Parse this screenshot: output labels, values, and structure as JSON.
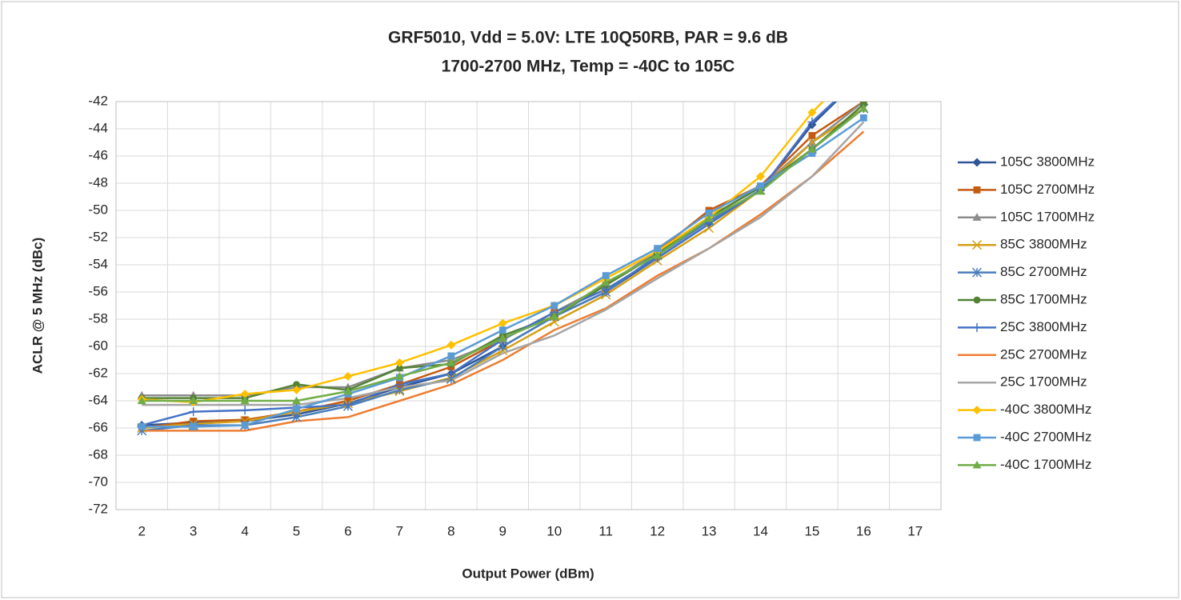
{
  "chart_data": {
    "type": "line",
    "title": [
      "GRF5010, Vdd = 5.0V: LTE 10Q50RB, PAR = 9.6 dB",
      "1700-2700 MHz, Temp = -40C to 105C"
    ],
    "x_label": "Output Power (dBm)",
    "y_label": "ACLR @ 5 MHz (dBc)",
    "categories": [
      2,
      3,
      4,
      5,
      6,
      7,
      8,
      9,
      10,
      11,
      12,
      13,
      14,
      15,
      16,
      17
    ],
    "ylim": [
      -72,
      -42
    ],
    "yticks": [
      -72,
      -70,
      -68,
      -66,
      -64,
      -62,
      -60,
      -58,
      -56,
      -54,
      -52,
      -50,
      -48,
      -46,
      -44,
      -42
    ],
    "grid": true,
    "legend": "right",
    "series": [
      {
        "name": "105C  3800MHz",
        "color": "#2f5597",
        "marker": "diamond",
        "values": [
          -65.8,
          -65.6,
          -65.5,
          -65,
          -64.2,
          -63,
          -62,
          -60,
          -57.8,
          -56,
          -53.5,
          -51,
          -48.5,
          -43.7,
          -40,
          null
        ]
      },
      {
        "name": "105C  2700MHz",
        "color": "#c55a11",
        "marker": "square",
        "values": [
          -66,
          -65.5,
          -65.4,
          -64.8,
          -64,
          -62.8,
          -61.5,
          -59.5,
          -57.5,
          -55.5,
          -53,
          -50,
          -48.2,
          -44.5,
          -42,
          null
        ]
      },
      {
        "name": "105C  1700MHz",
        "color": "#8c8c8c",
        "marker": "triangle",
        "values": [
          -63.6,
          -63.6,
          -63.6,
          -63,
          -63,
          -61.6,
          -61,
          -59.5,
          -57.5,
          -55.5,
          -53,
          -50.5,
          -48.3,
          -45,
          -42,
          null
        ]
      },
      {
        "name": "85C  3800MHz",
        "color": "#d4a017",
        "marker": "x",
        "values": [
          -66,
          -65.7,
          -65.5,
          -64.8,
          -64.2,
          -63.3,
          -62.3,
          -60.3,
          -58.2,
          -56.2,
          -53.7,
          -51.3,
          -48.5,
          -45,
          -42.5,
          null
        ]
      },
      {
        "name": "85C  2700MHz",
        "color": "#4a7ebb",
        "marker": "star",
        "values": [
          -66.2,
          -65.8,
          -65.8,
          -65.2,
          -64.4,
          -63.2,
          -62.4,
          -60,
          -57.8,
          -56,
          -53.3,
          -50.8,
          -48.5,
          -45.5,
          -42.5,
          null
        ]
      },
      {
        "name": "85C  1700MHz",
        "color": "#548235",
        "marker": "circle",
        "values": [
          -63.8,
          -63.8,
          -63.8,
          -62.8,
          -63.2,
          -61.6,
          -61.3,
          -59.2,
          -57.8,
          -55.5,
          -53.2,
          -50.5,
          -48.3,
          -45.5,
          -42.2,
          null
        ]
      },
      {
        "name": "25C  3800MHz",
        "color": "#4472c4",
        "marker": "plus",
        "values": [
          -65.8,
          -64.8,
          -64.7,
          -64.5,
          -64.3,
          -62.8,
          -62,
          -59.5,
          -57.5,
          -55.8,
          -53.5,
          -51,
          -48.5,
          -43.5,
          -40,
          null
        ]
      },
      {
        "name": "25C  2700MHz",
        "color": "#ed7d31",
        "marker": "none",
        "values": [
          -66.2,
          -66.2,
          -66.2,
          -65.5,
          -65.2,
          -64,
          -62.8,
          -61,
          -58.8,
          -57.2,
          -54.8,
          -52.8,
          -50.3,
          -47.5,
          -44.2,
          null
        ]
      },
      {
        "name": "25C  1700MHz",
        "color": "#a5a5a5",
        "marker": "none",
        "values": [
          -64.3,
          -64.3,
          -64.3,
          -64.3,
          -63.8,
          -63,
          -62.5,
          -60.5,
          -59.2,
          -57.3,
          -55,
          -52.8,
          -50.5,
          -47.5,
          -43.5,
          null
        ]
      },
      {
        "name": "-40C  3800MHz",
        "color": "#ffc000",
        "marker": "diamond",
        "values": [
          -63.9,
          -64.1,
          -63.5,
          -63.2,
          -62.2,
          -61.2,
          -59.9,
          -58.3,
          -57,
          -55,
          -53,
          -50.5,
          -47.5,
          -42.8,
          -39,
          null
        ]
      },
      {
        "name": "-40C  2700MHz",
        "color": "#5b9bd5",
        "marker": "square",
        "values": [
          -65.9,
          -65.9,
          -65.8,
          -64.6,
          -63.5,
          -62.3,
          -60.7,
          -58.8,
          -57,
          -54.8,
          -52.8,
          -50.2,
          -48.2,
          -45.8,
          -43.2,
          null
        ]
      },
      {
        "name": "-40C  1700MHz",
        "color": "#70ad47",
        "marker": "triangle",
        "values": [
          -64,
          -64,
          -64,
          -64,
          -63.3,
          -62.2,
          -61.2,
          -59.4,
          -57.8,
          -55.3,
          -53.3,
          -50.6,
          -48.6,
          -45.5,
          -42.5,
          null
        ]
      }
    ]
  }
}
